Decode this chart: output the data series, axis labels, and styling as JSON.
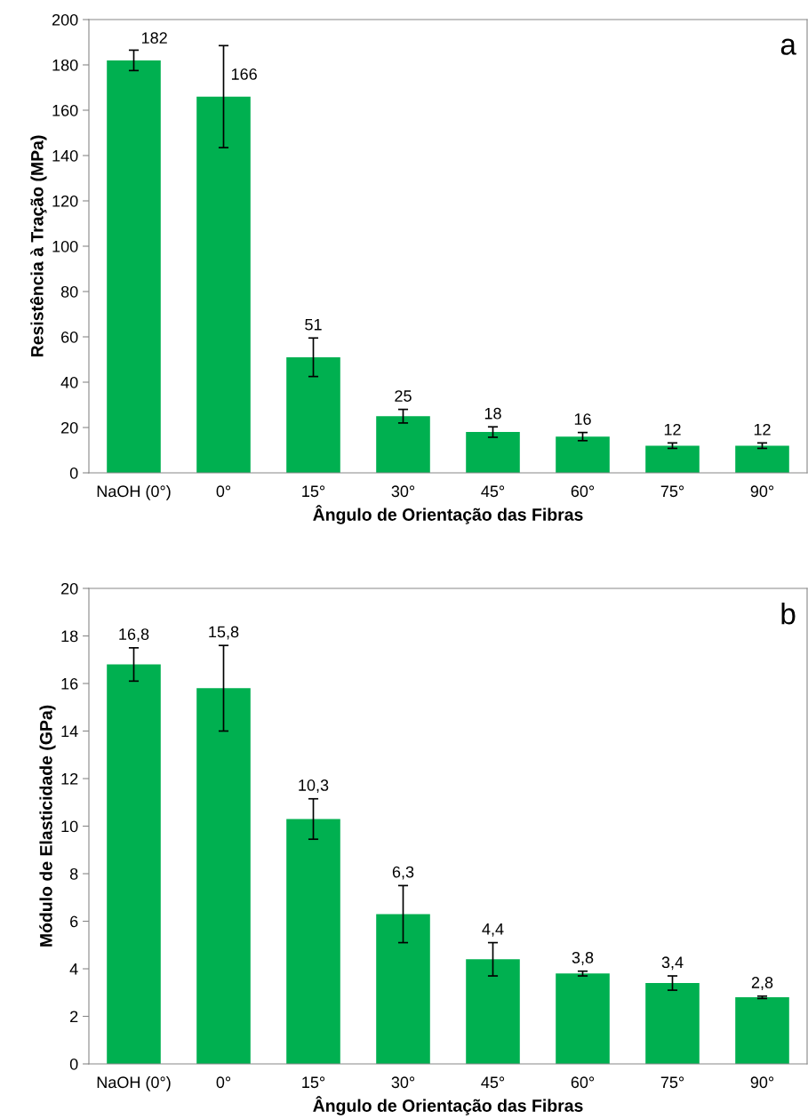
{
  "chart_data": [
    {
      "type": "bar",
      "xlabel": "Ângulo de Orientação das Fibras",
      "ylabel": "Resistência à Tração (MPa)",
      "categories": [
        "NaOH (0°)",
        "0°",
        "15°",
        "30°",
        "45°",
        "60°",
        "75°",
        "90°"
      ],
      "values": [
        182,
        166,
        51,
        25,
        18,
        16,
        12,
        12
      ],
      "color": "#00b050",
      "errors": [
        4.5,
        22.5,
        8.5,
        3,
        2.3,
        1.8,
        1.2,
        1.2
      ],
      "value_labels": [
        "182",
        "166",
        "51",
        "25",
        "18",
        "16",
        "12",
        "12"
      ],
      "ylim": [
        0,
        200
      ],
      "yticks": [
        0,
        20,
        40,
        60,
        80,
        100,
        120,
        140,
        160,
        180,
        200
      ],
      "annotations": [
        "a"
      ]
    },
    {
      "type": "bar",
      "xlabel": "Ângulo de Orientação das Fibras",
      "ylabel": "Módulo de Elasticidade (GPa)",
      "categories": [
        "NaOH (0°)",
        "0°",
        "15°",
        "30°",
        "45°",
        "60°",
        "75°",
        "90°"
      ],
      "values": [
        16.8,
        15.8,
        10.3,
        6.3,
        4.4,
        3.8,
        3.4,
        2.8
      ],
      "color": "#00b050",
      "errors": [
        0.7,
        1.8,
        0.85,
        1.2,
        0.7,
        0.1,
        0.3,
        0.05
      ],
      "value_labels": [
        "16,8",
        "15,8",
        "10,3",
        "6,3",
        "4,4",
        "3,8",
        "3,4",
        "2,8"
      ],
      "ylim": [
        0,
        20
      ],
      "yticks": [
        0,
        2,
        4,
        6,
        8,
        10,
        12,
        14,
        16,
        18,
        20
      ],
      "annotations": [
        "b"
      ]
    }
  ]
}
